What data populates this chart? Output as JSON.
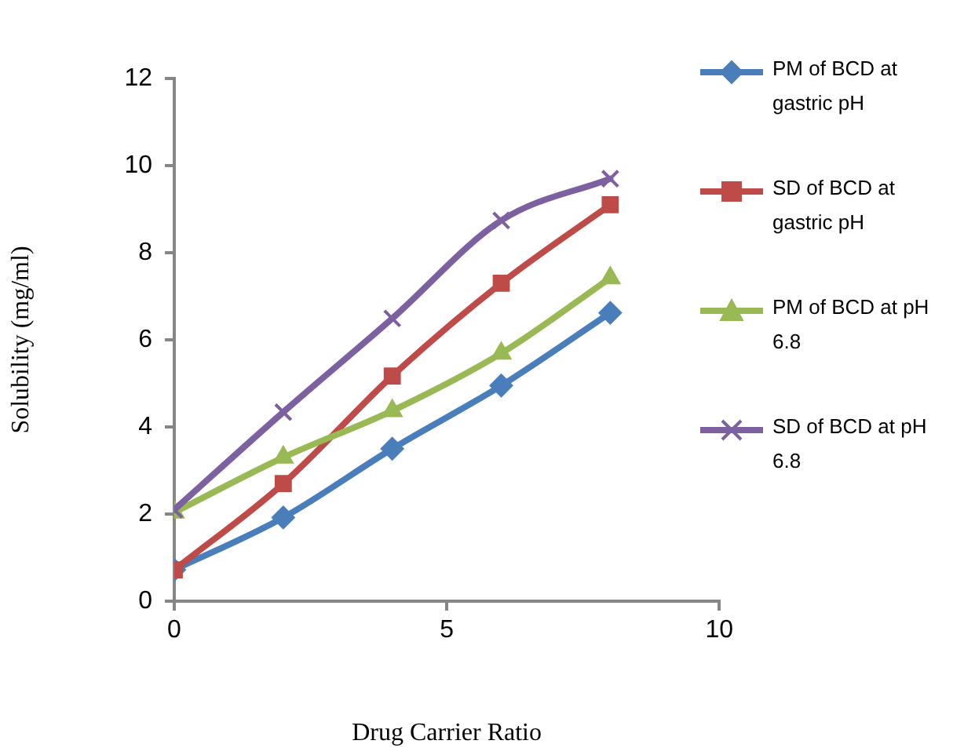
{
  "chart_data": {
    "type": "line",
    "xlabel": "Drug Carrier Ratio",
    "ylabel": "Solubility (mg/ml)",
    "x": [
      0,
      2,
      4,
      6,
      8
    ],
    "xlim": [
      0,
      10
    ],
    "xticks": [
      0,
      5,
      10
    ],
    "ylim": [
      0,
      12
    ],
    "yticks": [
      0,
      2,
      4,
      6,
      8,
      10,
      12
    ],
    "grid": false,
    "legend": "right",
    "series": [
      {
        "name": "PM of BCD at gastric pH",
        "color": "#4a7ebb",
        "marker": "diamond",
        "values": [
          0.72,
          1.92,
          3.5,
          4.95,
          6.62
        ]
      },
      {
        "name": "SD of BCD at gastric pH",
        "color": "#be4b48",
        "marker": "square",
        "values": [
          0.72,
          2.7,
          5.17,
          7.3,
          9.1
        ]
      },
      {
        "name": "PM of BCD at pH 6.8",
        "color": "#98b954",
        "marker": "triangle",
        "values": [
          2.04,
          3.3,
          4.37,
          5.69,
          7.42
        ]
      },
      {
        "name": "SD of BCD at pH 6.8",
        "color": "#7d60a0",
        "marker": "cross",
        "values": [
          2.1,
          4.34,
          6.49,
          8.74,
          9.7
        ]
      }
    ]
  }
}
